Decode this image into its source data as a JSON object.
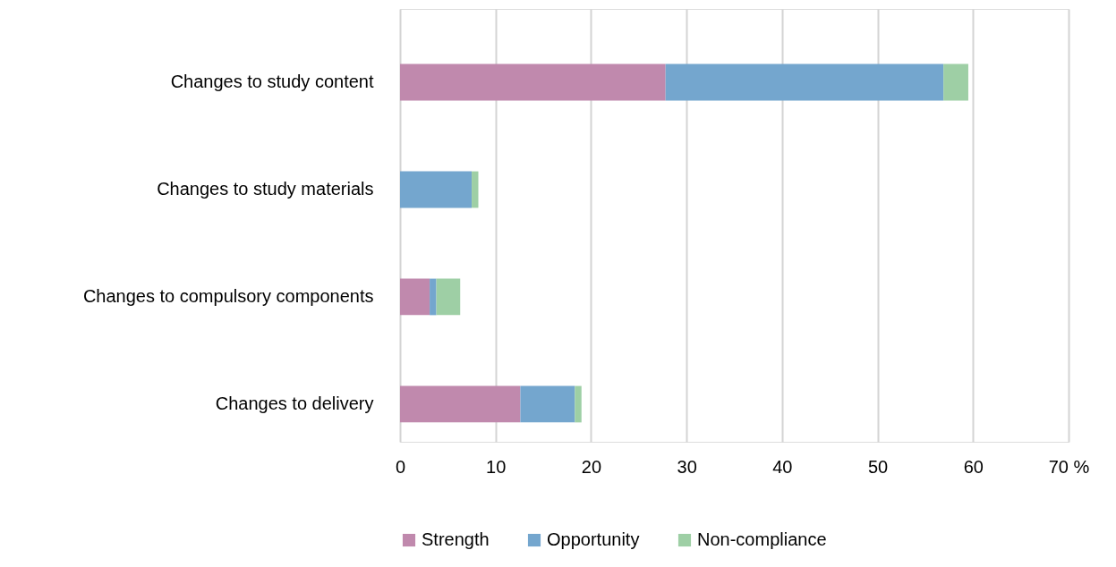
{
  "chart_data": {
    "type": "bar",
    "orientation": "horizontal",
    "stacked": true,
    "categories": [
      "Changes to study content",
      "Changes to study materials",
      "Changes to compulsory components",
      "Changes to delivery"
    ],
    "series": [
      {
        "name": "Strength",
        "color": "#c089ad",
        "values": [
          27.8,
          0,
          3.1,
          12.6
        ]
      },
      {
        "name": "Opportunity",
        "color": "#74a6ce",
        "values": [
          29.1,
          7.5,
          0.7,
          5.7
        ]
      },
      {
        "name": "Non-compliance",
        "color": "#9ecfa5",
        "values": [
          2.6,
          0.7,
          2.5,
          0.7
        ]
      }
    ],
    "xlim": [
      0,
      70
    ],
    "xticks": [
      0,
      10,
      20,
      30,
      40,
      50,
      60,
      {
        "value": 70,
        "label": "70 %"
      }
    ],
    "grid": "x",
    "legend": "bottom"
  }
}
